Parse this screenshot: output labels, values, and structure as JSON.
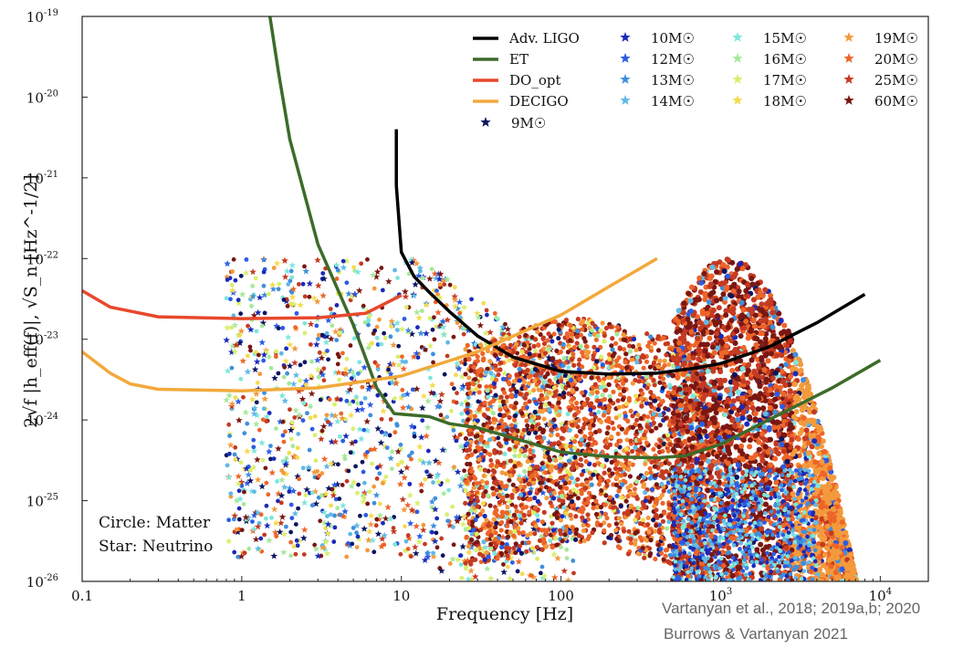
{
  "chart_data": {
    "type": "scatter",
    "title": "",
    "xlabel": "Frequency [Hz]",
    "ylabel": "2√f |h_eff(f)|,  √S_n [Hz^-1/2]",
    "xscale": "log",
    "yscale": "log",
    "xlim": [
      0.1,
      20000
    ],
    "ylim": [
      1e-26,
      1e-19
    ],
    "x_ticks": [
      {
        "value": 0.1,
        "label": "0.1"
      },
      {
        "value": 1,
        "label": "1"
      },
      {
        "value": 10,
        "label": "10"
      },
      {
        "value": 100,
        "label": "100"
      },
      {
        "value": 1000,
        "label": "10",
        "exp": "3"
      },
      {
        "value": 10000,
        "label": "10",
        "exp": "4"
      }
    ],
    "y_ticks": [
      {
        "value": 1e-19,
        "label": "10",
        "exp": "-19"
      },
      {
        "value": 1e-20,
        "label": "10",
        "exp": "-20"
      },
      {
        "value": 1e-21,
        "label": "10",
        "exp": "-21"
      },
      {
        "value": 1e-22,
        "label": "10",
        "exp": "-22"
      },
      {
        "value": 1e-23,
        "label": "10",
        "exp": "-23"
      },
      {
        "value": 1e-24,
        "label": "10",
        "exp": "-24"
      },
      {
        "value": 1e-25,
        "label": "10",
        "exp": "-25"
      },
      {
        "value": 1e-26,
        "label": "10",
        "exp": "-26"
      }
    ],
    "grid": false,
    "legend_position": "top-right",
    "curves": [
      {
        "name": "Adv. LIGO",
        "color": "#000000",
        "points": [
          [
            9.3,
            4e-21
          ],
          [
            9.3,
            8e-22
          ],
          [
            10,
            1.2e-22
          ],
          [
            12,
            6e-23
          ],
          [
            15,
            3.8e-23
          ],
          [
            20,
            2.2e-23
          ],
          [
            30,
            1.1e-23
          ],
          [
            50,
            6e-24
          ],
          [
            100,
            4e-24
          ],
          [
            200,
            3.7e-24
          ],
          [
            400,
            3.8e-24
          ],
          [
            700,
            4.4e-24
          ],
          [
            1000,
            5e-24
          ],
          [
            2000,
            8e-24
          ],
          [
            4000,
            1.6e-23
          ],
          [
            8000,
            3.6e-23
          ]
        ]
      },
      {
        "name": "ET",
        "color": "#3d6b2a",
        "points": [
          [
            1.5,
            1e-19
          ],
          [
            1.7,
            2e-20
          ],
          [
            2,
            3e-21
          ],
          [
            3,
            1.5e-22
          ],
          [
            5,
            1.5e-23
          ],
          [
            7,
            2.5e-24
          ],
          [
            9,
            1.2e-24
          ],
          [
            15,
            1.1e-24
          ],
          [
            20,
            9e-25
          ],
          [
            30,
            8e-25
          ],
          [
            50,
            6e-25
          ],
          [
            100,
            4e-25
          ],
          [
            200,
            3.5e-25
          ],
          [
            400,
            3.4e-25
          ],
          [
            600,
            3.6e-25
          ],
          [
            1000,
            5e-25
          ],
          [
            2000,
            1e-24
          ],
          [
            5000,
            2.5e-24
          ],
          [
            10000,
            5.5e-24
          ]
        ]
      },
      {
        "name": "DO_opt",
        "color": "#e8482b",
        "points": [
          [
            0.1,
            4e-23
          ],
          [
            0.15,
            2.5e-23
          ],
          [
            0.3,
            1.9e-23
          ],
          [
            1,
            1.8e-23
          ],
          [
            3,
            1.85e-23
          ],
          [
            6,
            2.1e-23
          ],
          [
            10,
            3.5e-23
          ]
        ]
      },
      {
        "name": "DECIGO",
        "color": "#f2a93b",
        "points": [
          [
            0.1,
            7e-24
          ],
          [
            0.15,
            3.8e-24
          ],
          [
            0.2,
            2.8e-24
          ],
          [
            0.3,
            2.4e-24
          ],
          [
            1,
            2.3e-24
          ],
          [
            3,
            2.5e-24
          ],
          [
            10,
            3.5e-24
          ],
          [
            30,
            7e-24
          ],
          [
            100,
            2e-23
          ],
          [
            200,
            4.5e-23
          ],
          [
            400,
            1e-22
          ]
        ]
      }
    ],
    "series": [
      {
        "name": "9M☉",
        "color": "#0c1560"
      },
      {
        "name": "10M☉",
        "color": "#1a2ab8"
      },
      {
        "name": "12M☉",
        "color": "#2b5ce3"
      },
      {
        "name": "13M☉",
        "color": "#3f8ede"
      },
      {
        "name": "14M☉",
        "color": "#5fb9e6"
      },
      {
        "name": "15M☉",
        "color": "#7ee6dc"
      },
      {
        "name": "16M☉",
        "color": "#a6e99b"
      },
      {
        "name": "17M☉",
        "color": "#d8ef6e"
      },
      {
        "name": "18M☉",
        "color": "#f4dc4f"
      },
      {
        "name": "19M☉",
        "color": "#f39a3c"
      },
      {
        "name": "20M☉",
        "color": "#ed6528"
      },
      {
        "name": "25M☉",
        "color": "#c53a22"
      },
      {
        "name": "60M☉",
        "color": "#7a1712"
      }
    ],
    "annotations": [
      "Circle: Matter",
      "Star: Neutrino"
    ]
  },
  "credit": {
    "line1": "Vartanyan et al., 2018; 2019a,b; 2020",
    "line2": "Burrows & Vartanyan 2021"
  }
}
